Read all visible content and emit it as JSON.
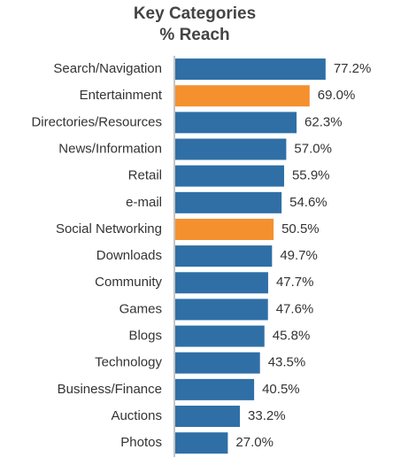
{
  "chart_data": {
    "type": "bar",
    "orientation": "horizontal",
    "title": "Key Categories",
    "subtitle": "% Reach",
    "categories": [
      "Search/Navigation",
      "Entertainment",
      "Directories/Resources",
      "News/Information",
      "Retail",
      "e-mail",
      "Social Networking",
      "Downloads",
      "Community",
      "Games",
      "Blogs",
      "Technology",
      "Business/Finance",
      "Auctions",
      "Photos"
    ],
    "values": [
      77.2,
      69.0,
      62.3,
      57.0,
      55.9,
      54.6,
      50.5,
      49.7,
      47.7,
      47.6,
      45.8,
      43.5,
      40.5,
      33.2,
      27.0
    ],
    "value_labels": [
      "77.2%",
      "69.0%",
      "62.3%",
      "57.0%",
      "55.9%",
      "54.6%",
      "50.5%",
      "49.7%",
      "47.7%",
      "47.6%",
      "45.8%",
      "43.5%",
      "40.5%",
      "33.2%",
      "27.0%"
    ],
    "colors": [
      "#2f6fa6",
      "#f5902f",
      "#2f6fa6",
      "#2f6fa6",
      "#2f6fa6",
      "#2f6fa6",
      "#f5902f",
      "#2f6fa6",
      "#2f6fa6",
      "#2f6fa6",
      "#2f6fa6",
      "#2f6fa6",
      "#2f6fa6",
      "#2f6fa6",
      "#2f6fa6"
    ]
  }
}
